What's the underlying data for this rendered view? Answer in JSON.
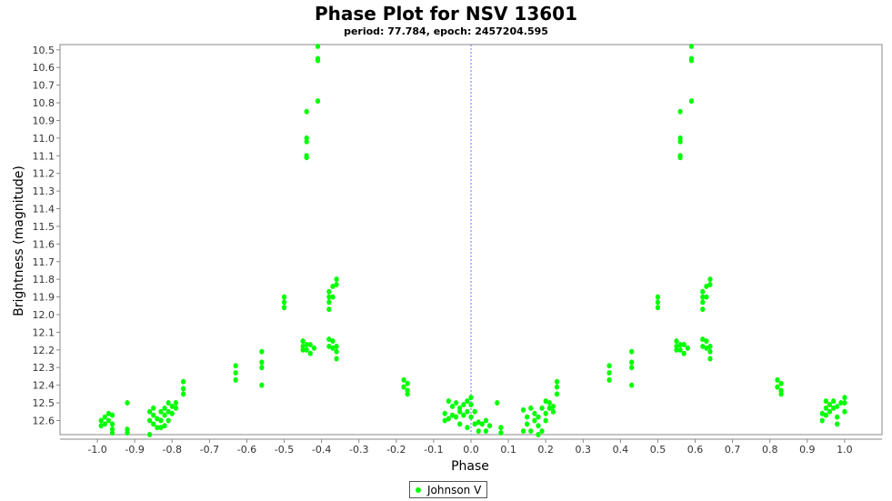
{
  "chart_data": {
    "type": "scatter",
    "title": "Phase Plot for NSV 13601",
    "subtitle": "period: 77.784, epoch: 2457204.595",
    "xlabel": "Phase",
    "ylabel": "Brightness (magnitude)",
    "xlim": [
      -1.1,
      1.1
    ],
    "ylim": [
      12.68,
      10.47
    ],
    "y_inverted": true,
    "x_ticks": [
      "-1.0",
      "-0.9",
      "-0.8",
      "-0.7",
      "-0.6",
      "-0.5",
      "-0.4",
      "-0.3",
      "-0.2",
      "-0.1",
      "0.0",
      "0.1",
      "0.2",
      "0.3",
      "0.4",
      "0.5",
      "0.6",
      "0.7",
      "0.8",
      "0.9",
      "1.0"
    ],
    "y_ticks": [
      "10.5",
      "10.6",
      "10.7",
      "10.8",
      "10.9",
      "11.0",
      "11.1",
      "11.2",
      "11.3",
      "11.4",
      "11.5",
      "11.6",
      "11.7",
      "11.8",
      "11.9",
      "12.0",
      "12.1",
      "12.2",
      "12.3",
      "12.4",
      "12.5",
      "12.6"
    ],
    "zero_line": 0.0,
    "grid": false,
    "legend_position": "bottom-center",
    "colors": {
      "point": "#00ff00",
      "zero_line": "#7070ff",
      "axis": "#888888"
    },
    "series": [
      {
        "name": "Johnson V",
        "points": [
          [
            0.0,
            12.58
          ],
          [
            0.01,
            12.55
          ],
          [
            0.02,
            12.61
          ],
          [
            0.03,
            12.62
          ],
          [
            0.04,
            12.6
          ],
          [
            0.05,
            12.63
          ],
          [
            0.04,
            12.66
          ],
          [
            0.07,
            12.5
          ],
          [
            0.08,
            12.64
          ],
          [
            0.08,
            12.67
          ],
          [
            -0.06,
            12.49
          ],
          [
            -0.05,
            12.52
          ],
          [
            -0.04,
            12.5
          ],
          [
            -0.03,
            12.53
          ],
          [
            -0.02,
            12.51
          ],
          [
            -0.01,
            12.49
          ],
          [
            0.0,
            12.47
          ],
          [
            0.0,
            12.51
          ],
          [
            -0.01,
            12.55
          ],
          [
            -0.02,
            12.57
          ],
          [
            -0.03,
            12.55
          ],
          [
            -0.04,
            12.58
          ],
          [
            -0.05,
            12.57
          ],
          [
            -0.06,
            12.59
          ],
          [
            -0.07,
            12.56
          ],
          [
            -0.07,
            12.6
          ],
          [
            -0.03,
            12.62
          ],
          [
            -0.01,
            12.64
          ],
          [
            0.01,
            12.62
          ],
          [
            0.02,
            12.66
          ],
          [
            0.14,
            12.54
          ],
          [
            0.15,
            12.58
          ],
          [
            0.15,
            12.62
          ],
          [
            0.14,
            12.66
          ],
          [
            0.16,
            12.53
          ],
          [
            0.17,
            12.56
          ],
          [
            0.17,
            12.6
          ],
          [
            0.18,
            12.63
          ],
          [
            0.18,
            12.58
          ],
          [
            0.19,
            12.53
          ],
          [
            0.2,
            12.6
          ],
          [
            0.2,
            12.56
          ],
          [
            0.21,
            12.53
          ],
          [
            0.21,
            12.5
          ],
          [
            0.22,
            12.55
          ],
          [
            0.22,
            12.52
          ],
          [
            0.19,
            12.66
          ],
          [
            0.18,
            12.68
          ],
          [
            0.16,
            12.66
          ],
          [
            0.2,
            12.49
          ],
          [
            0.23,
            12.38
          ],
          [
            0.23,
            12.41
          ],
          [
            0.23,
            12.45
          ],
          [
            0.37,
            12.29
          ],
          [
            0.37,
            12.33
          ],
          [
            0.37,
            12.37
          ],
          [
            0.43,
            12.21
          ],
          [
            0.43,
            12.27
          ],
          [
            0.43,
            12.3
          ],
          [
            0.43,
            12.4
          ],
          [
            0.5,
            11.9
          ],
          [
            0.5,
            11.93
          ],
          [
            0.5,
            11.96
          ],
          [
            0.55,
            12.15
          ],
          [
            0.55,
            12.18
          ],
          [
            0.55,
            12.2
          ],
          [
            0.56,
            12.17
          ],
          [
            0.56,
            12.2
          ],
          [
            0.57,
            12.17
          ],
          [
            0.57,
            12.22
          ],
          [
            0.58,
            12.19
          ],
          [
            0.56,
            10.85
          ],
          [
            0.56,
            11.0
          ],
          [
            0.56,
            11.02
          ],
          [
            0.56,
            11.1
          ],
          [
            0.56,
            11.11
          ],
          [
            0.59,
            10.48
          ],
          [
            0.59,
            10.55
          ],
          [
            0.59,
            10.56
          ],
          [
            0.59,
            10.79
          ],
          [
            0.62,
            11.87
          ],
          [
            0.62,
            11.9
          ],
          [
            0.62,
            11.93
          ],
          [
            0.62,
            11.97
          ],
          [
            0.63,
            11.84
          ],
          [
            0.63,
            11.9
          ],
          [
            0.64,
            11.8
          ],
          [
            0.64,
            11.83
          ],
          [
            0.62,
            12.14
          ],
          [
            0.62,
            12.18
          ],
          [
            0.63,
            12.15
          ],
          [
            0.63,
            12.19
          ],
          [
            0.64,
            12.18
          ],
          [
            0.64,
            12.21
          ],
          [
            0.64,
            12.25
          ],
          [
            0.82,
            12.37
          ],
          [
            0.82,
            12.41
          ],
          [
            0.83,
            12.39
          ],
          [
            0.83,
            12.43
          ],
          [
            0.83,
            12.45
          ],
          [
            0.94,
            12.56
          ],
          [
            0.94,
            12.6
          ],
          [
            0.95,
            12.49
          ],
          [
            0.95,
            12.53
          ],
          [
            0.95,
            12.57
          ],
          [
            0.96,
            12.51
          ],
          [
            0.96,
            12.55
          ],
          [
            0.97,
            12.49
          ],
          [
            0.97,
            12.53
          ],
          [
            0.98,
            12.58
          ],
          [
            0.98,
            12.62
          ],
          [
            0.98,
            12.52
          ],
          [
            0.99,
            12.5
          ],
          [
            1.0,
            12.47
          ],
          [
            1.0,
            12.5
          ],
          [
            1.0,
            12.55
          ],
          [
            -0.99,
            12.6
          ],
          [
            -0.99,
            12.63
          ],
          [
            -0.98,
            12.62
          ],
          [
            -0.98,
            12.58
          ],
          [
            -0.97,
            12.56
          ],
          [
            -0.97,
            12.6
          ],
          [
            -0.96,
            12.57
          ],
          [
            -0.96,
            12.62
          ],
          [
            -0.96,
            12.65
          ],
          [
            -0.96,
            12.67
          ],
          [
            -0.92,
            12.5
          ],
          [
            -0.92,
            12.65
          ],
          [
            -0.92,
            12.67
          ],
          [
            -0.86,
            12.55
          ],
          [
            -0.86,
            12.6
          ],
          [
            -0.85,
            12.53
          ],
          [
            -0.85,
            12.57
          ],
          [
            -0.85,
            12.62
          ],
          [
            -0.84,
            12.59
          ],
          [
            -0.84,
            12.64
          ],
          [
            -0.83,
            12.55
          ],
          [
            -0.83,
            12.6
          ],
          [
            -0.82,
            12.53
          ],
          [
            -0.82,
            12.57
          ],
          [
            -0.82,
            12.63
          ],
          [
            -0.81,
            12.5
          ],
          [
            -0.81,
            12.55
          ],
          [
            -0.81,
            12.6
          ],
          [
            -0.8,
            12.52
          ],
          [
            -0.8,
            12.56
          ],
          [
            -0.79,
            12.53
          ],
          [
            -0.79,
            12.5
          ],
          [
            -0.83,
            12.64
          ],
          [
            -0.86,
            12.68
          ],
          [
            -0.77,
            12.38
          ],
          [
            -0.77,
            12.42
          ],
          [
            -0.77,
            12.45
          ],
          [
            -0.63,
            12.29
          ],
          [
            -0.63,
            12.33
          ],
          [
            -0.63,
            12.37
          ],
          [
            -0.56,
            12.21
          ],
          [
            -0.56,
            12.27
          ],
          [
            -0.56,
            12.3
          ],
          [
            -0.56,
            12.4
          ],
          [
            -0.5,
            11.9
          ],
          [
            -0.5,
            11.93
          ],
          [
            -0.5,
            11.96
          ],
          [
            -0.45,
            12.15
          ],
          [
            -0.45,
            12.18
          ],
          [
            -0.45,
            12.2
          ],
          [
            -0.44,
            12.17
          ],
          [
            -0.44,
            12.2
          ],
          [
            -0.43,
            12.17
          ],
          [
            -0.43,
            12.22
          ],
          [
            -0.42,
            12.19
          ],
          [
            -0.44,
            10.85
          ],
          [
            -0.44,
            11.0
          ],
          [
            -0.44,
            11.02
          ],
          [
            -0.44,
            11.1
          ],
          [
            -0.44,
            11.11
          ],
          [
            -0.41,
            10.48
          ],
          [
            -0.41,
            10.55
          ],
          [
            -0.41,
            10.56
          ],
          [
            -0.41,
            10.79
          ],
          [
            -0.38,
            11.87
          ],
          [
            -0.38,
            11.9
          ],
          [
            -0.38,
            11.93
          ],
          [
            -0.38,
            11.97
          ],
          [
            -0.37,
            11.84
          ],
          [
            -0.37,
            11.9
          ],
          [
            -0.36,
            11.8
          ],
          [
            -0.36,
            11.83
          ],
          [
            -0.38,
            12.14
          ],
          [
            -0.38,
            12.18
          ],
          [
            -0.37,
            12.15
          ],
          [
            -0.37,
            12.19
          ],
          [
            -0.36,
            12.18
          ],
          [
            -0.36,
            12.21
          ],
          [
            -0.36,
            12.25
          ],
          [
            -0.18,
            12.37
          ],
          [
            -0.18,
            12.41
          ],
          [
            -0.17,
            12.39
          ],
          [
            -0.17,
            12.43
          ],
          [
            -0.17,
            12.45
          ]
        ]
      }
    ]
  }
}
